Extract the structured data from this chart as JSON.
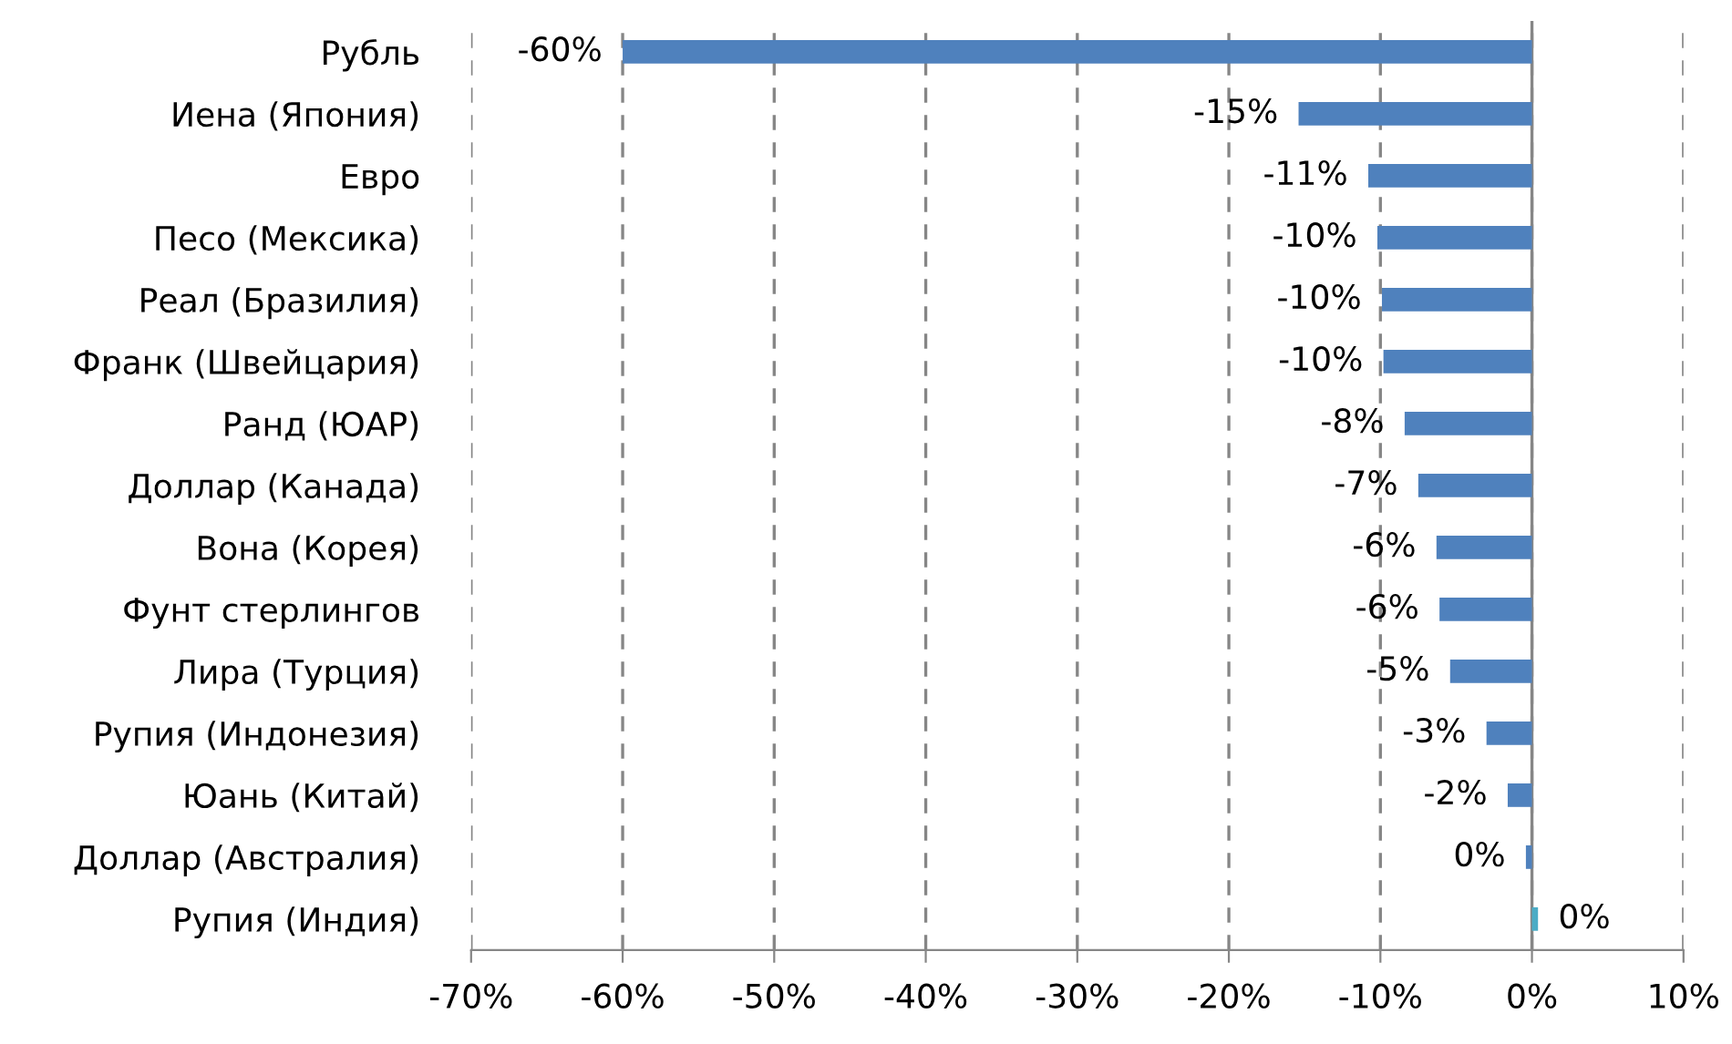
{
  "chart_data": {
    "type": "bar",
    "orientation": "horizontal",
    "categories": [
      "Рубль",
      "Иена (Япония)",
      "Евро",
      "Песо (Мексика)",
      "Реал (Бразилия)",
      "Франк (Швейцария)",
      "Ранд (ЮАР)",
      "Доллар (Канада)",
      "Вона (Корея)",
      "Фунт стерлингов",
      "Лира (Турция)",
      "Рупия (Индонезия)",
      "Юань (Китай)",
      "Доллар (Австралия)",
      "Рупия (Индия)"
    ],
    "values": [
      -60,
      -15.4,
      -10.8,
      -10.2,
      -9.9,
      -9.8,
      -8.4,
      -7.5,
      -6.3,
      -6.1,
      -5.4,
      -3,
      -1.6,
      -0.4,
      0.4
    ],
    "value_labels": [
      "-60%",
      "-15%",
      "-11%",
      "-10%",
      "-10%",
      "-10%",
      "-8%",
      "-7%",
      "-6%",
      "-6%",
      "-5%",
      "-3%",
      "-2%",
      "0%",
      "0%"
    ],
    "colors": [
      "#4f81bd",
      "#4f81bd",
      "#4f81bd",
      "#4f81bd",
      "#4f81bd",
      "#4f81bd",
      "#4f81bd",
      "#4f81bd",
      "#4f81bd",
      "#4f81bd",
      "#4f81bd",
      "#4f81bd",
      "#4f81bd",
      "#4f81bd",
      "#4bacc6"
    ],
    "xlim": [
      -70,
      10
    ],
    "xticks": [
      {
        "value": -70,
        "label": "-70%"
      },
      {
        "value": -60,
        "label": "-60%"
      },
      {
        "value": -50,
        "label": "-50%"
      },
      {
        "value": -40,
        "label": "-40%"
      },
      {
        "value": -30,
        "label": "-30%"
      },
      {
        "value": -20,
        "label": "-20%"
      },
      {
        "value": -10,
        "label": "-10%"
      },
      {
        "value": 0,
        "label": "0%"
      },
      {
        "value": 10,
        "label": "10%"
      }
    ],
    "grid": "x",
    "legend": false
  }
}
